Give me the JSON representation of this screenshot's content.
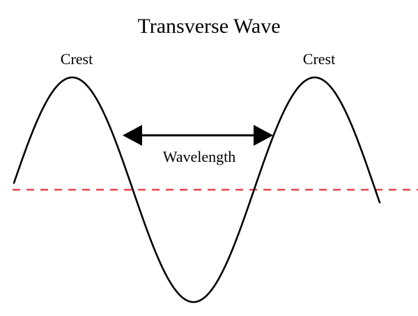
{
  "diagram": {
    "title": "Transverse Wave",
    "labels": {
      "crest_left": "Crest",
      "crest_right": "Crest",
      "wavelength": "Wavelength"
    },
    "colors": {
      "wave": "#000000",
      "baseline": "#e8434b",
      "arrow": "#000000",
      "background": "#ffffff"
    }
  }
}
